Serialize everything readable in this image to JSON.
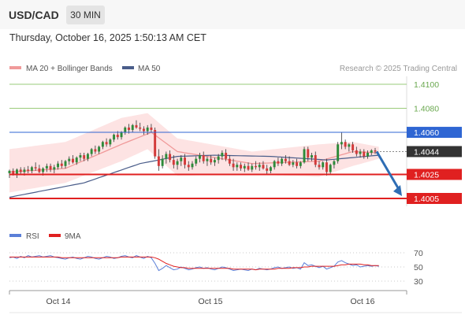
{
  "header": {
    "pair": "USD/CAD",
    "timeframe": "30 MIN",
    "datetime": "Thursday, October 16, 2025 1:50:13 AM CET"
  },
  "legend": {
    "ma20_bb": "MA 20 + Bollinger Bands",
    "ma50": "MA 50",
    "credit": "Research © 2025 Trading Central",
    "rsi": "RSI",
    "ma9": "9MA"
  },
  "colors": {
    "up": "#2e8b3a",
    "down": "#d33a3a",
    "ma20": "#f09a9a",
    "bb_fill": "#fde3e3",
    "ma50": "#4a5d8a",
    "resistance_green": "#9acb7a",
    "pivot_blue": "#2f66d3",
    "support_red": "#e02020",
    "current_dark": "#333333",
    "rsi": "#5b7fd8",
    "rsi_ma": "#e02020",
    "arrow": "#2e6db4"
  },
  "chart_data": [
    {
      "type": "candlestick",
      "title": "USD/CAD 30 MIN",
      "x_ticks": [
        "Oct 14",
        "Oct 15",
        "Oct 16"
      ],
      "ylim": [
        1.3998,
        1.4108
      ],
      "levels": [
        {
          "value": 1.41,
          "label": "1.4100",
          "kind": "resistance"
        },
        {
          "value": 1.408,
          "label": "1.4080",
          "kind": "resistance"
        },
        {
          "value": 1.406,
          "label": "1.4060",
          "kind": "pivot"
        },
        {
          "value": 1.4044,
          "label": "1.4044",
          "kind": "current"
        },
        {
          "value": 1.4025,
          "label": "1.4025",
          "kind": "support"
        },
        {
          "value": 1.4005,
          "label": "1.4005",
          "kind": "support"
        }
      ],
      "ohlc": [
        [
          1.4026,
          1.4029,
          1.4022,
          1.4028
        ],
        [
          1.4028,
          1.403,
          1.4024,
          1.4025
        ],
        [
          1.4025,
          1.403,
          1.4022,
          1.4029
        ],
        [
          1.4029,
          1.4031,
          1.4025,
          1.4027
        ],
        [
          1.4027,
          1.4031,
          1.4024,
          1.4029
        ],
        [
          1.4029,
          1.4032,
          1.4026,
          1.4028
        ],
        [
          1.4028,
          1.4032,
          1.4026,
          1.4031
        ],
        [
          1.4031,
          1.4035,
          1.4028,
          1.403
        ],
        [
          1.403,
          1.4033,
          1.4026,
          1.4027
        ],
        [
          1.4027,
          1.4031,
          1.4024,
          1.403
        ],
        [
          1.403,
          1.4034,
          1.4027,
          1.4032
        ],
        [
          1.4032,
          1.4034,
          1.4027,
          1.4029
        ],
        [
          1.4029,
          1.4033,
          1.4026,
          1.4031
        ],
        [
          1.4031,
          1.4036,
          1.4029,
          1.4034
        ],
        [
          1.4034,
          1.4037,
          1.403,
          1.4032
        ],
        [
          1.4032,
          1.4037,
          1.403,
          1.4036
        ],
        [
          1.4036,
          1.404,
          1.4033,
          1.4038
        ],
        [
          1.4038,
          1.4041,
          1.4034,
          1.4035
        ],
        [
          1.4035,
          1.404,
          1.4033,
          1.4039
        ],
        [
          1.4039,
          1.4043,
          1.4036,
          1.4041
        ],
        [
          1.4041,
          1.4043,
          1.4036,
          1.4038
        ],
        [
          1.4038,
          1.4043,
          1.4036,
          1.4042
        ],
        [
          1.4042,
          1.4047,
          1.404,
          1.4046
        ],
        [
          1.4046,
          1.4049,
          1.4042,
          1.4044
        ],
        [
          1.4044,
          1.4049,
          1.4042,
          1.4048
        ],
        [
          1.4048,
          1.4053,
          1.4046,
          1.4052
        ],
        [
          1.4052,
          1.4055,
          1.4048,
          1.405
        ],
        [
          1.405,
          1.4055,
          1.4048,
          1.4054
        ],
        [
          1.4054,
          1.4059,
          1.4052,
          1.4058
        ],
        [
          1.4058,
          1.4061,
          1.4054,
          1.4056
        ],
        [
          1.4056,
          1.4061,
          1.4054,
          1.406
        ],
        [
          1.406,
          1.4065,
          1.4058,
          1.4064
        ],
        [
          1.4064,
          1.4067,
          1.4059,
          1.4062
        ],
        [
          1.4062,
          1.4067,
          1.406,
          1.4066
        ],
        [
          1.4066,
          1.407,
          1.4063,
          1.4064
        ],
        [
          1.4064,
          1.4068,
          1.4061,
          1.4063
        ],
        [
          1.4063,
          1.4065,
          1.4058,
          1.4061
        ],
        [
          1.4061,
          1.4066,
          1.4058,
          1.4064
        ],
        [
          1.4064,
          1.4067,
          1.406,
          1.4062
        ],
        [
          1.4062,
          1.4064,
          1.4038,
          1.404
        ],
        [
          1.404,
          1.4046,
          1.4028,
          1.4032
        ],
        [
          1.4032,
          1.4041,
          1.403,
          1.4038
        ],
        [
          1.4038,
          1.4044,
          1.4034,
          1.4042
        ],
        [
          1.4042,
          1.4045,
          1.4035,
          1.4037
        ],
        [
          1.4037,
          1.4041,
          1.403,
          1.4033
        ],
        [
          1.4033,
          1.4038,
          1.4029,
          1.4036
        ],
        [
          1.4036,
          1.4041,
          1.4032,
          1.4039
        ],
        [
          1.4039,
          1.4042,
          1.403,
          1.4033
        ],
        [
          1.4033,
          1.4036,
          1.4028,
          1.4031
        ],
        [
          1.4031,
          1.4036,
          1.4029,
          1.4034
        ],
        [
          1.4034,
          1.404,
          1.4032,
          1.4038
        ],
        [
          1.4038,
          1.4043,
          1.4035,
          1.4041
        ],
        [
          1.4041,
          1.4044,
          1.4034,
          1.4036
        ],
        [
          1.4036,
          1.404,
          1.4032,
          1.4038
        ],
        [
          1.4038,
          1.4041,
          1.4033,
          1.4035
        ],
        [
          1.4035,
          1.4039,
          1.4032,
          1.4037
        ],
        [
          1.4037,
          1.4042,
          1.4034,
          1.404
        ],
        [
          1.404,
          1.4045,
          1.4037,
          1.4043
        ],
        [
          1.4043,
          1.4046,
          1.4036,
          1.4038
        ],
        [
          1.4038,
          1.4041,
          1.4032,
          1.4034
        ],
        [
          1.4034,
          1.4038,
          1.4028,
          1.4031
        ],
        [
          1.4031,
          1.4035,
          1.4028,
          1.4033
        ],
        [
          1.4033,
          1.4035,
          1.4028,
          1.403
        ],
        [
          1.403,
          1.4034,
          1.4027,
          1.4032
        ],
        [
          1.4032,
          1.4035,
          1.4028,
          1.4029
        ],
        [
          1.4029,
          1.4034,
          1.4027,
          1.4032
        ],
        [
          1.4032,
          1.4036,
          1.4029,
          1.4031
        ],
        [
          1.4031,
          1.4035,
          1.4028,
          1.4033
        ],
        [
          1.4033,
          1.4036,
          1.4029,
          1.403
        ],
        [
          1.403,
          1.4033,
          1.4025,
          1.4028
        ],
        [
          1.4028,
          1.4032,
          1.4026,
          1.4031
        ],
        [
          1.4031,
          1.4037,
          1.4029,
          1.4036
        ],
        [
          1.4036,
          1.4039,
          1.4032,
          1.4034
        ],
        [
          1.4034,
          1.4039,
          1.4032,
          1.4038
        ],
        [
          1.4038,
          1.4041,
          1.4034,
          1.4036
        ],
        [
          1.4036,
          1.404,
          1.4032,
          1.4033
        ],
        [
          1.4033,
          1.4037,
          1.4031,
          1.4035
        ],
        [
          1.4035,
          1.4038,
          1.403,
          1.4032
        ],
        [
          1.4032,
          1.4036,
          1.403,
          1.4035
        ],
        [
          1.4035,
          1.4048,
          1.4034,
          1.4046
        ],
        [
          1.4046,
          1.4048,
          1.4036,
          1.4039
        ],
        [
          1.4039,
          1.4043,
          1.4036,
          1.4041
        ],
        [
          1.4041,
          1.4044,
          1.4031,
          1.4033
        ],
        [
          1.4033,
          1.4036,
          1.4029,
          1.4031
        ],
        [
          1.4031,
          1.4036,
          1.4029,
          1.4035
        ],
        [
          1.4035,
          1.4038,
          1.4024,
          1.4027
        ],
        [
          1.4027,
          1.4034,
          1.4025,
          1.4033
        ],
        [
          1.4033,
          1.4037,
          1.403,
          1.4036
        ],
        [
          1.4036,
          1.4052,
          1.4034,
          1.405
        ],
        [
          1.405,
          1.406,
          1.4046,
          1.4052
        ],
        [
          1.4052,
          1.4054,
          1.4046,
          1.4048
        ],
        [
          1.4048,
          1.4051,
          1.4044,
          1.405
        ],
        [
          1.405,
          1.4052,
          1.4043,
          1.4045
        ],
        [
          1.4045,
          1.4048,
          1.404,
          1.4042
        ],
        [
          1.4042,
          1.4046,
          1.4039,
          1.4044
        ],
        [
          1.4044,
          1.4046,
          1.4038,
          1.404
        ],
        [
          1.404,
          1.4045,
          1.4038,
          1.4043
        ],
        [
          1.4043,
          1.4046,
          1.4041,
          1.4045
        ],
        [
          1.4045,
          1.4047,
          1.4042,
          1.4044
        ]
      ],
      "bb_upper": [
        [
          0,
          1.4046
        ],
        [
          15,
          1.4052
        ],
        [
          30,
          1.4072
        ],
        [
          37,
          1.4076
        ],
        [
          45,
          1.4055
        ],
        [
          65,
          1.4044
        ],
        [
          83,
          1.405
        ],
        [
          92,
          1.4052
        ],
        [
          99,
          1.4048
        ]
      ],
      "bb_lower": [
        [
          0,
          1.401
        ],
        [
          15,
          1.4018
        ],
        [
          30,
          1.4036
        ],
        [
          37,
          1.4046
        ],
        [
          45,
          1.4024
        ],
        [
          65,
          1.4025
        ],
        [
          83,
          1.4023
        ],
        [
          92,
          1.4032
        ],
        [
          99,
          1.4038
        ]
      ],
      "ma20": [
        [
          0,
          1.4027
        ],
        [
          15,
          1.403
        ],
        [
          30,
          1.405
        ],
        [
          38,
          1.406
        ],
        [
          45,
          1.4044
        ],
        [
          65,
          1.4034
        ],
        [
          83,
          1.4036
        ],
        [
          92,
          1.4044
        ],
        [
          99,
          1.4043
        ]
      ],
      "ma50": [
        [
          0,
          1.4006
        ],
        [
          20,
          1.4018
        ],
        [
          35,
          1.4034
        ],
        [
          45,
          1.404
        ],
        [
          55,
          1.4041
        ],
        [
          70,
          1.404
        ],
        [
          85,
          1.4037
        ],
        [
          99,
          1.4041
        ]
      ]
    },
    {
      "type": "line",
      "title": "RSI",
      "ylim": [
        20,
        80
      ],
      "y_ticks": [
        70,
        50,
        30
      ],
      "series": [
        {
          "name": "RSI",
          "values": [
            63,
            64,
            62,
            65,
            63,
            66,
            64,
            65,
            66,
            64,
            65,
            66,
            64,
            63,
            62,
            61,
            63,
            64,
            62,
            61,
            63,
            65,
            64,
            62,
            61,
            63,
            65,
            64,
            62,
            63,
            65,
            66,
            64,
            63,
            66,
            64,
            62,
            65,
            63,
            55,
            45,
            48,
            52,
            49,
            46,
            47,
            50,
            48,
            46,
            47,
            49,
            50,
            48,
            49,
            47,
            46,
            48,
            50,
            49,
            47,
            45,
            46,
            47,
            46,
            45,
            47,
            46,
            48,
            47,
            46,
            47,
            49,
            50,
            48,
            49,
            50,
            48,
            49,
            47,
            56,
            52,
            53,
            51,
            49,
            51,
            47,
            49,
            51,
            57,
            59,
            56,
            54,
            52,
            53,
            50,
            51,
            52,
            51,
            52,
            51
          ]
        },
        {
          "name": "9MA",
          "values": [
            64,
            64,
            64,
            64,
            64,
            64,
            64,
            64,
            64,
            64,
            64,
            64,
            64,
            64,
            63,
            63,
            63,
            63,
            63,
            63,
            63,
            63,
            63,
            63,
            63,
            63,
            63,
            63,
            63,
            63,
            64,
            64,
            64,
            64,
            64,
            64,
            64,
            64,
            64,
            63,
            61,
            58,
            55,
            53,
            51,
            50,
            49,
            49,
            48,
            48,
            48,
            48,
            48,
            48,
            48,
            48,
            48,
            48,
            48,
            48,
            47,
            47,
            47,
            47,
            47,
            47,
            46,
            47,
            47,
            47,
            47,
            47,
            48,
            48,
            48,
            48,
            49,
            49,
            49,
            50,
            50,
            51,
            51,
            51,
            51,
            51,
            51,
            51,
            52,
            53,
            53,
            54,
            54,
            54,
            54,
            53,
            53,
            52,
            52,
            52
          ]
        }
      ]
    }
  ]
}
